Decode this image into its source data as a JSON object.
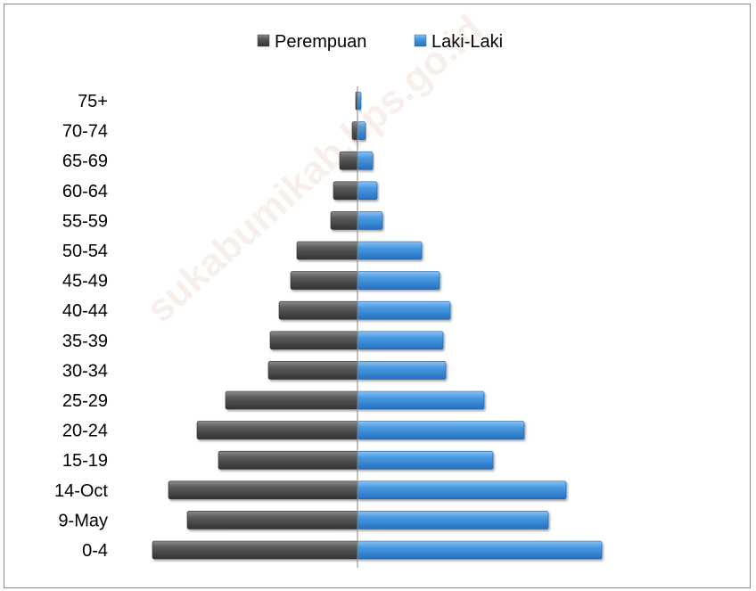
{
  "chart_data": {
    "type": "bar",
    "orientation": "horizontal",
    "layout": "population-pyramid",
    "categories": [
      "75+",
      "70-74",
      "65-69",
      "60-64",
      "55-59",
      "50-54",
      "45-49",
      "40-44",
      "35-39",
      "30-34",
      "25-29",
      "20-24",
      "15-19",
      "14-Oct",
      "9-May",
      "0-4"
    ],
    "series": [
      {
        "name": "Perempuan",
        "side": "left",
        "color": "#555555",
        "values": [
          2,
          6,
          20,
          27,
          30,
          68,
          75,
          88,
          98,
          100,
          148,
          180,
          156,
          212,
          191,
          230
        ]
      },
      {
        "name": "Laki-Laki",
        "side": "right",
        "color": "#3d8fdc",
        "values": [
          4,
          9,
          17,
          22,
          28,
          72,
          92,
          104,
          96,
          99,
          142,
          187,
          152,
          234,
          214,
          274
        ]
      }
    ],
    "title": "",
    "xlabel": "",
    "ylabel": "",
    "legend": "top-center",
    "grid": false,
    "value_axis_labels_shown": false
  },
  "watermark": "sukabumikab.bps.go.id"
}
